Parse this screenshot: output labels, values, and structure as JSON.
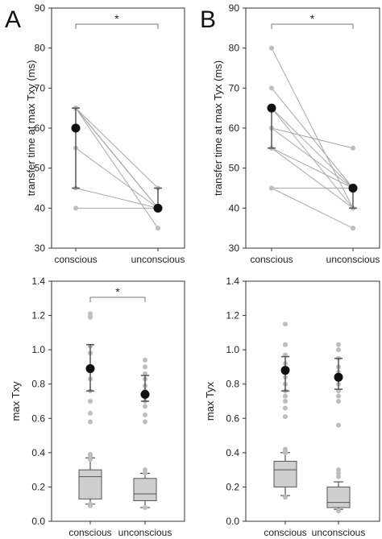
{
  "chart_data": [
    {
      "type": "scatter",
      "panel_label": "A",
      "ylabel": "transfer time at max Txy (ms)",
      "categories": [
        "conscious",
        "unconscious"
      ],
      "ylim": [
        30,
        90
      ],
      "yticks": [
        "30",
        "40",
        "50",
        "60",
        "70",
        "80",
        "90"
      ],
      "significance": "*",
      "paired_lines": [
        [
          65,
          40
        ],
        [
          65,
          45
        ],
        [
          65,
          40
        ],
        [
          65,
          40
        ],
        [
          55,
          40
        ],
        [
          45,
          40
        ],
        [
          40,
          40
        ],
        [
          65,
          35
        ]
      ],
      "means": [
        60,
        40
      ],
      "error_bars": [
        [
          45,
          65
        ],
        [
          40,
          45
        ]
      ]
    },
    {
      "type": "scatter",
      "panel_label": "B",
      "ylabel": "transfer time at max Tyx (ms)",
      "categories": [
        "conscious",
        "unconscious"
      ],
      "ylim": [
        30,
        90
      ],
      "yticks": [
        "30",
        "40",
        "50",
        "60",
        "70",
        "80",
        "90"
      ],
      "significance": "*",
      "paired_lines": [
        [
          80,
          40
        ],
        [
          70,
          45
        ],
        [
          65,
          45
        ],
        [
          65,
          40
        ],
        [
          60,
          45
        ],
        [
          60,
          55
        ],
        [
          55,
          45
        ],
        [
          55,
          40
        ],
        [
          45,
          45
        ],
        [
          45,
          35
        ]
      ],
      "means": [
        65,
        45
      ],
      "error_bars": [
        [
          55,
          65
        ],
        [
          40,
          45
        ]
      ]
    },
    {
      "type": "box",
      "ylabel": "max Txy",
      "categories": [
        "conscious",
        "unconscious"
      ],
      "ylim": [
        0.0,
        1.4
      ],
      "yticks": [
        "0.0",
        "0.2",
        "0.4",
        "0.6",
        "0.8",
        "1.0",
        "1.2",
        "1.4"
      ],
      "significance": "*",
      "boxes": [
        {
          "whisker_low": 0.1,
          "q1": 0.13,
          "median": 0.26,
          "q3": 0.3,
          "whisker_high": 0.37
        },
        {
          "whisker_low": 0.08,
          "q1": 0.12,
          "median": 0.16,
          "q3": 0.25,
          "whisker_high": 0.28
        }
      ],
      "outliers": [
        [
          1.21,
          1.19,
          1.02,
          0.98,
          0.9,
          0.83,
          0.76,
          0.7,
          0.63,
          0.58,
          0.39,
          0.38,
          0.36,
          0.1,
          0.09
        ],
        [
          0.94,
          0.9,
          0.86,
          0.83,
          0.79,
          0.76,
          0.73,
          0.7,
          0.67,
          0.62,
          0.58,
          0.3,
          0.28,
          0.08
        ]
      ],
      "means": [
        0.89,
        0.74
      ],
      "error_bars": [
        [
          0.76,
          1.03
        ],
        [
          0.7,
          0.85
        ]
      ]
    },
    {
      "type": "box",
      "ylabel": "max Tyx",
      "categories": [
        "conscious",
        "unconscious"
      ],
      "ylim": [
        0.0,
        1.4
      ],
      "yticks": [
        "0.0",
        "0.2",
        "0.4",
        "0.6",
        "0.8",
        "1.0",
        "1.2",
        "1.4"
      ],
      "boxes": [
        {
          "whisker_low": 0.15,
          "q1": 0.2,
          "median": 0.3,
          "q3": 0.35,
          "whisker_high": 0.4
        },
        {
          "whisker_low": 0.07,
          "q1": 0.08,
          "median": 0.11,
          "q3": 0.2,
          "whisker_high": 0.23
        }
      ],
      "outliers": [
        [
          1.15,
          1.03,
          0.97,
          0.92,
          0.88,
          0.84,
          0.8,
          0.76,
          0.73,
          0.7,
          0.66,
          0.61,
          0.42,
          0.41,
          0.4,
          0.14
        ],
        [
          1.03,
          1.0,
          0.95,
          0.9,
          0.87,
          0.84,
          0.8,
          0.76,
          0.73,
          0.7,
          0.56,
          0.3,
          0.28,
          0.26,
          0.06
        ]
      ],
      "means": [
        0.88,
        0.84
      ],
      "error_bars": [
        [
          0.76,
          0.96
        ],
        [
          0.77,
          0.95
        ]
      ]
    }
  ]
}
